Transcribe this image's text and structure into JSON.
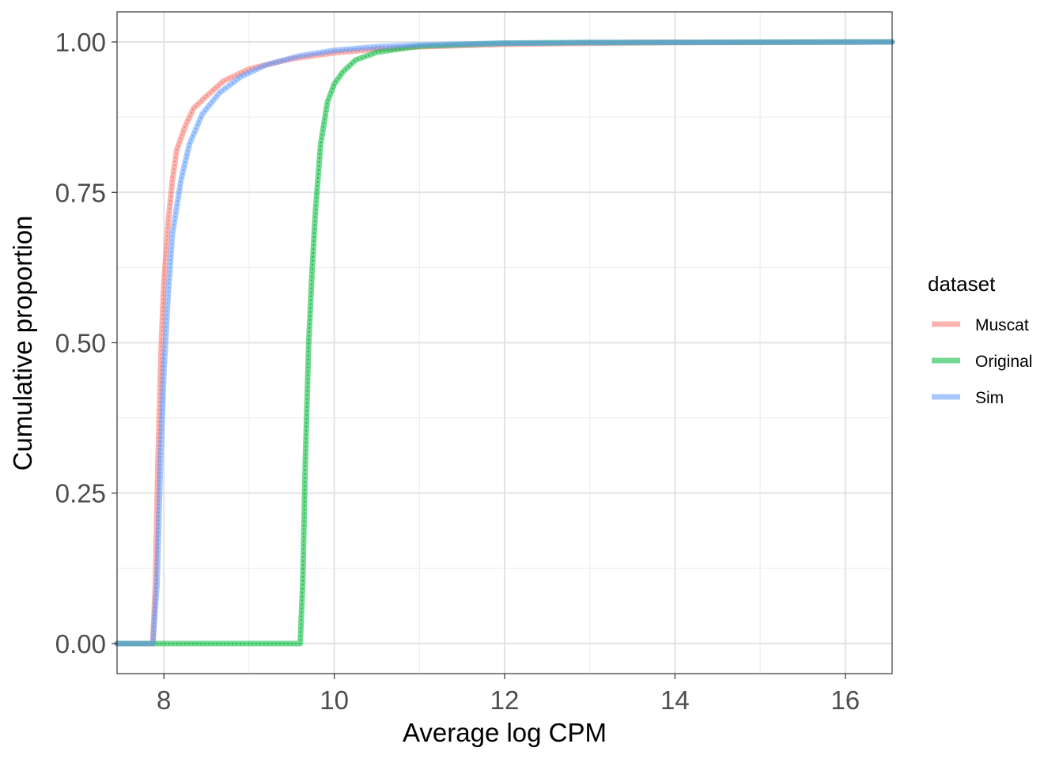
{
  "chart_data": {
    "type": "line",
    "title": "",
    "xlabel": "Average log CPM",
    "ylabel": "Cumulative proportion",
    "xlim": [
      7.45,
      16.55
    ],
    "ylim": [
      -0.05,
      1.05
    ],
    "x_ticks": [
      8,
      10,
      12,
      14,
      16
    ],
    "x_tick_labels": [
      "8",
      "10",
      "12",
      "14",
      "16"
    ],
    "y_ticks": [
      0,
      0.25,
      0.5,
      0.75,
      1
    ],
    "y_tick_labels": [
      "0.00",
      "0.25",
      "0.50",
      "0.75",
      "1.00"
    ],
    "grid": true,
    "legend": {
      "title": "dataset",
      "position": "right"
    },
    "series": [
      {
        "name": "Muscat",
        "color": "#F8766D",
        "points": [
          [
            7.45,
            0
          ],
          [
            7.87,
            0
          ],
          [
            7.9,
            0.1
          ],
          [
            7.93,
            0.3
          ],
          [
            7.97,
            0.5
          ],
          [
            8.0,
            0.6
          ],
          [
            8.05,
            0.7
          ],
          [
            8.1,
            0.77
          ],
          [
            8.15,
            0.82
          ],
          [
            8.25,
            0.86
          ],
          [
            8.35,
            0.89
          ],
          [
            8.5,
            0.91
          ],
          [
            8.7,
            0.935
          ],
          [
            9.0,
            0.955
          ],
          [
            9.5,
            0.972
          ],
          [
            10.0,
            0.982
          ],
          [
            10.5,
            0.988
          ],
          [
            11.0,
            0.992
          ],
          [
            12.0,
            0.996
          ],
          [
            13.0,
            0.998
          ],
          [
            14.0,
            0.999
          ],
          [
            16.55,
            1.0
          ]
        ]
      },
      {
        "name": "Original",
        "color": "#00BA38",
        "points": [
          [
            7.45,
            0
          ],
          [
            9.6,
            0
          ],
          [
            9.63,
            0.1
          ],
          [
            9.66,
            0.3
          ],
          [
            9.7,
            0.5
          ],
          [
            9.74,
            0.62
          ],
          [
            9.78,
            0.72
          ],
          [
            9.84,
            0.83
          ],
          [
            9.92,
            0.9
          ],
          [
            10.0,
            0.93
          ],
          [
            10.1,
            0.95
          ],
          [
            10.25,
            0.97
          ],
          [
            10.5,
            0.983
          ],
          [
            11.0,
            0.993
          ],
          [
            12.0,
            0.998
          ],
          [
            13.0,
            0.999
          ],
          [
            16.55,
            1.0
          ]
        ]
      },
      {
        "name": "Sim",
        "color": "#619CFF",
        "points": [
          [
            7.45,
            0
          ],
          [
            7.87,
            0
          ],
          [
            7.92,
            0.1
          ],
          [
            7.96,
            0.3
          ],
          [
            8.0,
            0.45
          ],
          [
            8.05,
            0.58
          ],
          [
            8.1,
            0.68
          ],
          [
            8.2,
            0.77
          ],
          [
            8.3,
            0.83
          ],
          [
            8.45,
            0.88
          ],
          [
            8.65,
            0.915
          ],
          [
            8.9,
            0.942
          ],
          [
            9.2,
            0.962
          ],
          [
            9.6,
            0.977
          ],
          [
            10.0,
            0.986
          ],
          [
            10.5,
            0.992
          ],
          [
            11.0,
            0.995
          ],
          [
            12.0,
            0.998
          ],
          [
            13.0,
            0.999
          ],
          [
            16.55,
            1.0
          ]
        ]
      }
    ]
  }
}
